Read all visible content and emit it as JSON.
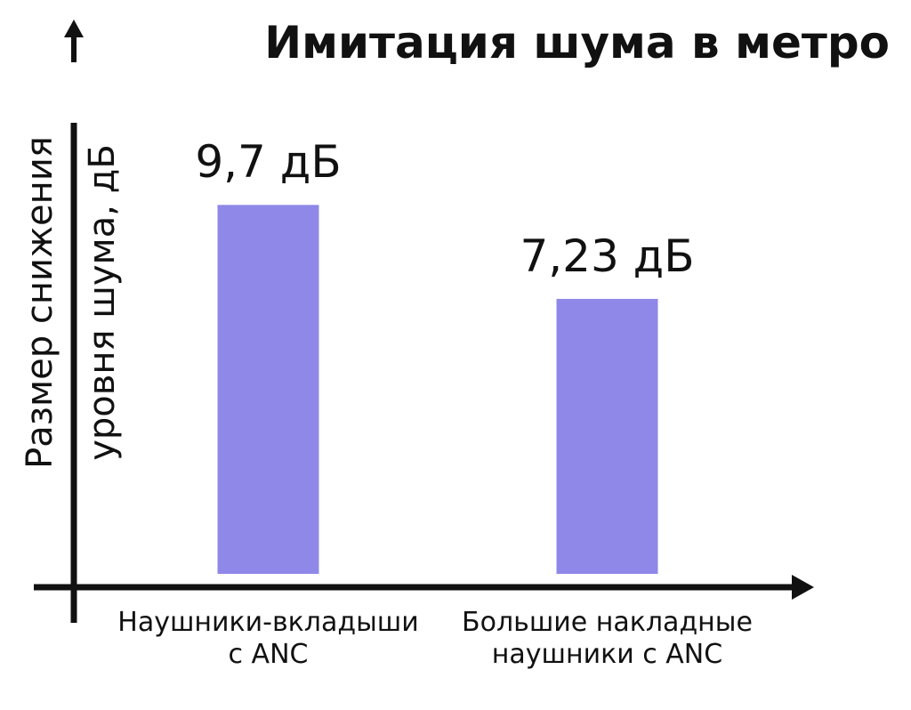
{
  "chart_data": {
    "type": "bar",
    "title": "Имитация шума в метро",
    "ylabel": "Размер снижения\nуровня шума, дБ",
    "categories": [
      "Наушники-вкладыши\nс ANC",
      "Большие накладные\nнаушники с ANC"
    ],
    "values": [
      9.7,
      7.23
    ],
    "value_labels": [
      "9,7 дБ",
      "7,23 дБ"
    ],
    "color": "#8f88e9",
    "ylim": [
      0,
      12
    ]
  }
}
